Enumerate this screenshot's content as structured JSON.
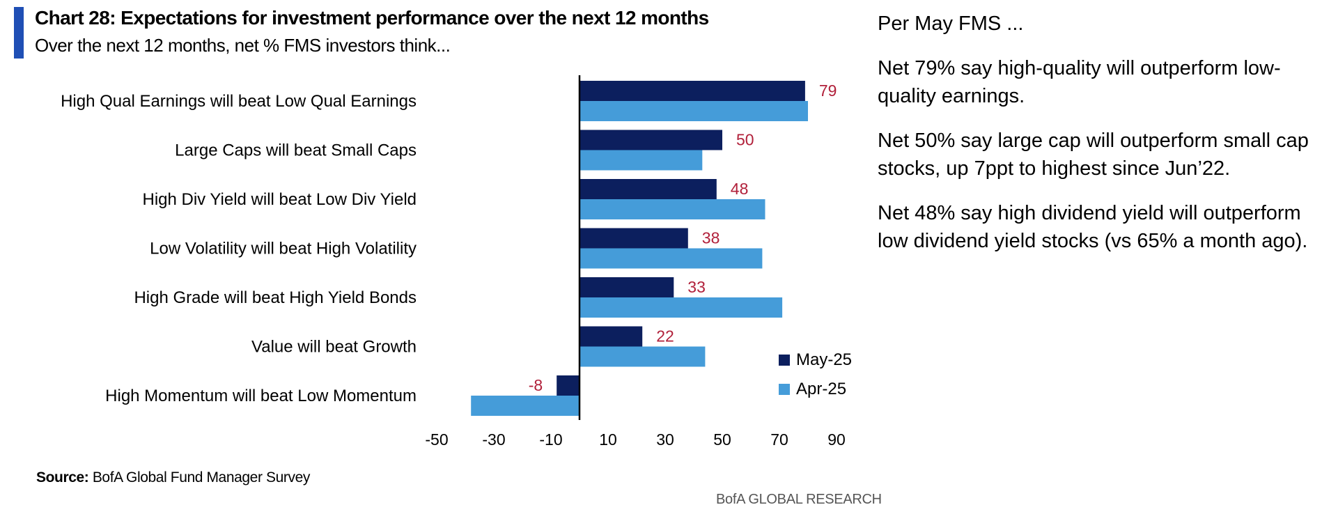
{
  "header": {
    "title": "Chart 28: Expectations for investment performance over the next 12 months",
    "subtitle": "Over the next 12 months, net % FMS investors think..."
  },
  "source": {
    "label": "Source:",
    "text": "BofA Global Fund Manager Survey"
  },
  "branding": "BofA GLOBAL RESEARCH",
  "commentary": {
    "heading": "Per May FMS ...",
    "paragraphs": [
      "Net 79% say high-quality will outperform low-quality earnings.",
      "Net 50% say large cap will outperform small cap stocks, up 7ppt to highest since Jun’22.",
      "Net 48% say high dividend yield will outperform low dividend yield stocks (vs 65% a month ago)."
    ]
  },
  "colors": {
    "accent": "#1f4fb5",
    "may": "#0c1f5e",
    "apr": "#459cd9",
    "data_label": "#b1203a"
  },
  "chart_data": {
    "type": "bar",
    "orientation": "horizontal",
    "title": "Chart 28: Expectations for investment performance over the next 12 months",
    "subtitle": "Over the next 12 months, net % FMS investors think...",
    "categories": [
      "High Qual Earnings will beat Low Qual Earnings",
      "Large Caps will beat Small Caps",
      "High Div Yield will beat Low Div Yield",
      "Low Volatility will beat High Volatility",
      "High Grade will beat High Yield Bonds",
      "Value will beat Growth",
      "High Momentum will beat Low Momentum"
    ],
    "series": [
      {
        "name": "May-25",
        "values": [
          79,
          50,
          48,
          38,
          33,
          22,
          -8
        ]
      },
      {
        "name": "Apr-25",
        "values": [
          80,
          43,
          65,
          64,
          71,
          44,
          -38
        ]
      }
    ],
    "data_labels": [
      "79",
      "50",
      "48",
      "38",
      "33",
      "22",
      "-8"
    ],
    "xlim": [
      -50,
      95
    ],
    "xticks": [
      "-50",
      "-30",
      "-10",
      "10",
      "30",
      "50",
      "70",
      "90"
    ],
    "xtick_values": [
      -50,
      -30,
      -10,
      10,
      30,
      50,
      70,
      90
    ],
    "legend": {
      "position": "bottom-right",
      "entries": [
        "May-25",
        "Apr-25"
      ]
    },
    "grid": false
  }
}
